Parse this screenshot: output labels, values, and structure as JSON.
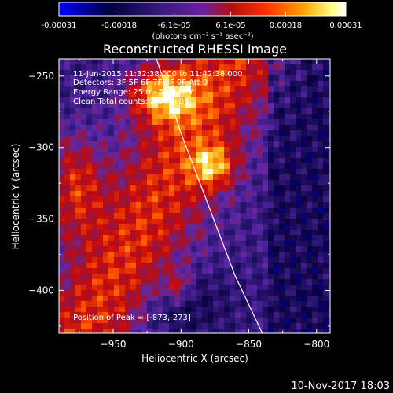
{
  "chart_data": {
    "type": "heatmap",
    "title": "Reconstructed RHESSI Image",
    "xlabel": "Heliocentric X (arcsec)",
    "ylabel": "Heliocentric Y (arcsec)",
    "xlim": [
      -990,
      -790
    ],
    "ylim": [
      -430,
      -238
    ],
    "xticks": [
      -950,
      -900,
      -850,
      -800
    ],
    "yticks": [
      -250,
      -300,
      -350,
      -400
    ],
    "colorbar": {
      "range": [
        -0.00031,
        0.00031
      ],
      "ticks": [
        {
          "value": -0.00031,
          "label": "-0.00031"
        },
        {
          "value": -0.00018,
          "label": "-0.00018"
        },
        {
          "value": -6.1e-05,
          "label": "-6.1e-05"
        },
        {
          "value": 6.1e-05,
          "label": "6.1e-05"
        },
        {
          "value": 0.00018,
          "label": "0.00018"
        },
        {
          "value": 0.00031,
          "label": "0.00031"
        }
      ],
      "unit_label": "(photons cm⁻² s⁻¹ asec⁻²)"
    },
    "annotations": [
      "11-Jun-2015 11:32:38.000 to 11:42:38.000",
      "Detectors: 3F 5F 6F 7F 8F 9F  Att 0",
      "Energy Range: 25.0 - 50.0 keV",
      "Clean      Total counts: 2.04e+04"
    ],
    "peak_label": "Position of Peak = [-873,-273]",
    "peak": [
      -873,
      -273
    ],
    "limb_curve": [
      [
        -918,
        -238
      ],
      [
        -900,
        -290
      ],
      [
        -880,
        -340
      ],
      [
        -860,
        -390
      ],
      [
        -840,
        -430
      ]
    ],
    "grid": false
  },
  "footer": {
    "date": "10-Nov-2017 18:03"
  },
  "colors": {
    "background": "#000000",
    "foreground": "#ffffff",
    "colormap": [
      "#0000ff",
      "#000000",
      "#5a2ab8",
      "#cc0000",
      "#ff8800",
      "#ffff88",
      "#ffffff"
    ]
  }
}
